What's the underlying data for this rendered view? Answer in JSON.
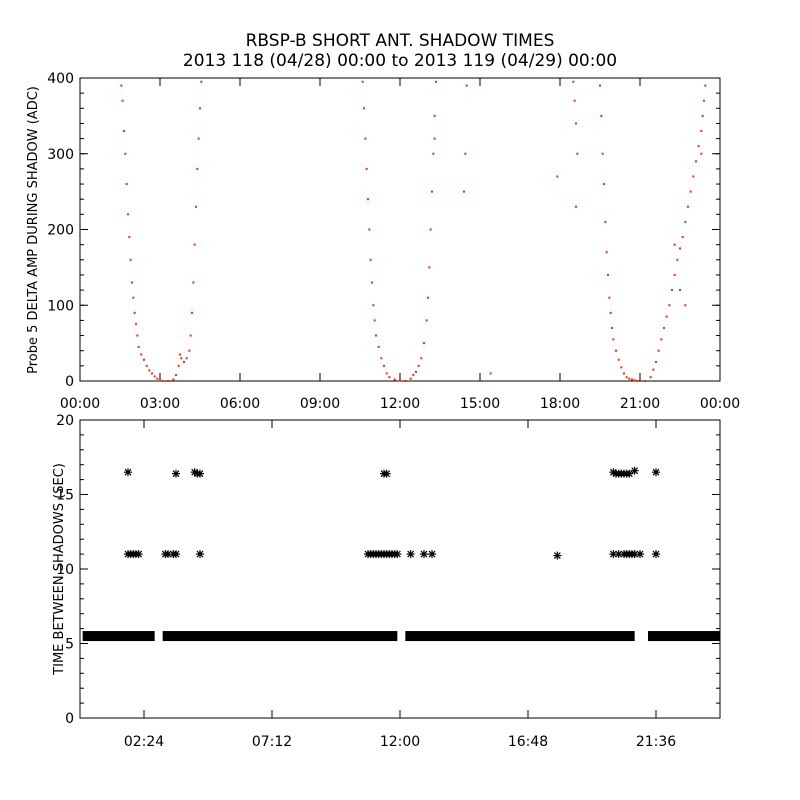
{
  "title_line1": "RBSP-B SHORT ANT. SHADOW TIMES",
  "title_line2": "2013 118 (04/28) 00:00 to 2013 119 (04/29) 00:00",
  "colors": {
    "points_top": "#ff2a00",
    "points_bottom": "#000000",
    "axis": "#000000"
  },
  "chart_data": [
    {
      "type": "scatter",
      "ylabel": "Probe 5 DELTA AMP DURING SHADOW (ADC)",
      "xlim": [
        0,
        24
      ],
      "ylim": [
        0,
        400
      ],
      "x_ticks": [
        0,
        3,
        6,
        9,
        12,
        15,
        18,
        21,
        24
      ],
      "x_tick_labels": [
        "00:00",
        "03:00",
        "06:00",
        "09:00",
        "12:00",
        "15:00",
        "18:00",
        "21:00",
        "00:00"
      ],
      "y_ticks": [
        0,
        100,
        200,
        300,
        400
      ],
      "y_tick_labels": [
        "0",
        "100",
        "200",
        "300",
        "400"
      ],
      "marker": "dot",
      "color": "#ff2a00",
      "points": [
        [
          1.55,
          390
        ],
        [
          1.6,
          370
        ],
        [
          1.65,
          330
        ],
        [
          1.7,
          300
        ],
        [
          1.75,
          260
        ],
        [
          1.8,
          220
        ],
        [
          1.85,
          190
        ],
        [
          1.9,
          160
        ],
        [
          1.95,
          130
        ],
        [
          2.0,
          110
        ],
        [
          2.05,
          90
        ],
        [
          2.1,
          75
        ],
        [
          2.15,
          60
        ],
        [
          2.2,
          45
        ],
        [
          2.3,
          35
        ],
        [
          2.4,
          28
        ],
        [
          2.5,
          20
        ],
        [
          2.6,
          14
        ],
        [
          2.7,
          10
        ],
        [
          2.8,
          6
        ],
        [
          2.9,
          3
        ],
        [
          3.0,
          1
        ],
        [
          3.1,
          0
        ],
        [
          3.3,
          0
        ],
        [
          3.5,
          2
        ],
        [
          3.6,
          8
        ],
        [
          3.7,
          20
        ],
        [
          3.75,
          35
        ],
        [
          3.8,
          30
        ],
        [
          3.9,
          25
        ],
        [
          4.0,
          30
        ],
        [
          4.1,
          40
        ],
        [
          4.15,
          60
        ],
        [
          4.2,
          90
        ],
        [
          4.25,
          130
        ],
        [
          4.3,
          180
        ],
        [
          4.35,
          230
        ],
        [
          4.4,
          280
        ],
        [
          4.45,
          320
        ],
        [
          4.5,
          360
        ],
        [
          4.55,
          395
        ],
        [
          10.6,
          395
        ],
        [
          10.65,
          360
        ],
        [
          10.7,
          320
        ],
        [
          10.75,
          280
        ],
        [
          10.8,
          240
        ],
        [
          10.85,
          200
        ],
        [
          10.9,
          160
        ],
        [
          10.95,
          130
        ],
        [
          11.0,
          100
        ],
        [
          11.05,
          80
        ],
        [
          11.1,
          60
        ],
        [
          11.2,
          45
        ],
        [
          11.3,
          30
        ],
        [
          11.4,
          20
        ],
        [
          11.5,
          10
        ],
        [
          11.6,
          5
        ],
        [
          11.8,
          2
        ],
        [
          12.0,
          1
        ],
        [
          12.2,
          0
        ],
        [
          12.4,
          3
        ],
        [
          12.5,
          8
        ],
        [
          12.6,
          12
        ],
        [
          12.7,
          20
        ],
        [
          12.8,
          30
        ],
        [
          12.9,
          50
        ],
        [
          13.0,
          80
        ],
        [
          13.05,
          110
        ],
        [
          13.1,
          150
        ],
        [
          13.15,
          200
        ],
        [
          13.2,
          250
        ],
        [
          13.25,
          300
        ],
        [
          13.3,
          350
        ],
        [
          13.35,
          395
        ],
        [
          13.3,
          320
        ],
        [
          14.5,
          390
        ],
        [
          14.45,
          300
        ],
        [
          14.4,
          250
        ],
        [
          15.4,
          10
        ],
        [
          17.9,
          270
        ],
        [
          18.5,
          395
        ],
        [
          18.55,
          370
        ],
        [
          18.6,
          340
        ],
        [
          18.65,
          300
        ],
        [
          18.6,
          230
        ],
        [
          19.5,
          390
        ],
        [
          19.55,
          350
        ],
        [
          19.6,
          300
        ],
        [
          19.65,
          260
        ],
        [
          19.7,
          210
        ],
        [
          19.75,
          170
        ],
        [
          19.8,
          140
        ],
        [
          19.85,
          110
        ],
        [
          19.9,
          90
        ],
        [
          19.95,
          70
        ],
        [
          20.0,
          55
        ],
        [
          20.1,
          40
        ],
        [
          20.2,
          28
        ],
        [
          20.3,
          18
        ],
        [
          20.4,
          10
        ],
        [
          20.5,
          5
        ],
        [
          20.6,
          3
        ],
        [
          20.7,
          2
        ],
        [
          20.8,
          1
        ],
        [
          20.9,
          0
        ],
        [
          21.2,
          0
        ],
        [
          21.4,
          5
        ],
        [
          21.5,
          15
        ],
        [
          21.6,
          25
        ],
        [
          21.7,
          40
        ],
        [
          21.8,
          55
        ],
        [
          21.9,
          70
        ],
        [
          22.0,
          85
        ],
        [
          22.1,
          100
        ],
        [
          22.2,
          120
        ],
        [
          22.3,
          140
        ],
        [
          22.4,
          160
        ],
        [
          22.5,
          175
        ],
        [
          22.6,
          190
        ],
        [
          22.7,
          210
        ],
        [
          22.8,
          230
        ],
        [
          22.9,
          250
        ],
        [
          23.0,
          270
        ],
        [
          23.1,
          290
        ],
        [
          23.2,
          310
        ],
        [
          23.3,
          330
        ],
        [
          23.35,
          350
        ],
        [
          23.4,
          370
        ],
        [
          23.45,
          390
        ],
        [
          23.3,
          300
        ],
        [
          22.3,
          180
        ],
        [
          22.5,
          120
        ],
        [
          22.7,
          100
        ]
      ]
    },
    {
      "type": "scatter",
      "ylabel": "TIME BETWEEN SHADOWS (SEC)",
      "xlim": [
        0,
        24
      ],
      "ylim": [
        0,
        20
      ],
      "x_ticks": [
        2.4,
        7.2,
        12.0,
        16.8,
        21.6
      ],
      "x_tick_labels": [
        "02:24",
        "07:12",
        "12:00",
        "16:48",
        "21:36"
      ],
      "y_ticks": [
        0,
        5,
        10,
        15,
        20
      ],
      "y_tick_labels": [
        "0",
        "5",
        "10",
        "15",
        "20"
      ],
      "marker": "asterisk",
      "color": "#000000",
      "baseline_segments": {
        "value": 5.5,
        "ranges": [
          [
            0.1,
            2.8
          ],
          [
            3.1,
            11.9
          ],
          [
            12.2,
            20.8
          ],
          [
            21.3,
            24
          ]
        ]
      },
      "points": [
        [
          1.8,
          16.5
        ],
        [
          1.8,
          11
        ],
        [
          1.9,
          11
        ],
        [
          2.0,
          11
        ],
        [
          2.1,
          11
        ],
        [
          2.2,
          11
        ],
        [
          3.2,
          11
        ],
        [
          3.3,
          11
        ],
        [
          3.5,
          11
        ],
        [
          3.6,
          11
        ],
        [
          3.6,
          16.4
        ],
        [
          4.3,
          16.5
        ],
        [
          4.4,
          16.4
        ],
        [
          4.5,
          16.4
        ],
        [
          4.5,
          11
        ],
        [
          10.8,
          11
        ],
        [
          10.9,
          11
        ],
        [
          11.0,
          11
        ],
        [
          11.1,
          11
        ],
        [
          11.2,
          11
        ],
        [
          11.3,
          11
        ],
        [
          11.4,
          11
        ],
        [
          11.5,
          11
        ],
        [
          11.6,
          11
        ],
        [
          11.7,
          11
        ],
        [
          11.8,
          11
        ],
        [
          11.9,
          11
        ],
        [
          11.4,
          16.4
        ],
        [
          11.5,
          16.4
        ],
        [
          12.4,
          11
        ],
        [
          12.9,
          11
        ],
        [
          13.2,
          11
        ],
        [
          17.9,
          10.9
        ],
        [
          20.0,
          16.5
        ],
        [
          20.1,
          16.4
        ],
        [
          20.2,
          16.4
        ],
        [
          20.3,
          16.4
        ],
        [
          20.4,
          16.4
        ],
        [
          20.5,
          16.4
        ],
        [
          20.6,
          16.4
        ],
        [
          20.8,
          16.6
        ],
        [
          20.0,
          11
        ],
        [
          20.2,
          11
        ],
        [
          20.4,
          11
        ],
        [
          20.5,
          11
        ],
        [
          20.6,
          11
        ],
        [
          20.7,
          11
        ],
        [
          20.8,
          11
        ],
        [
          21.0,
          11
        ],
        [
          21.6,
          16.5
        ],
        [
          21.6,
          11
        ]
      ]
    }
  ]
}
